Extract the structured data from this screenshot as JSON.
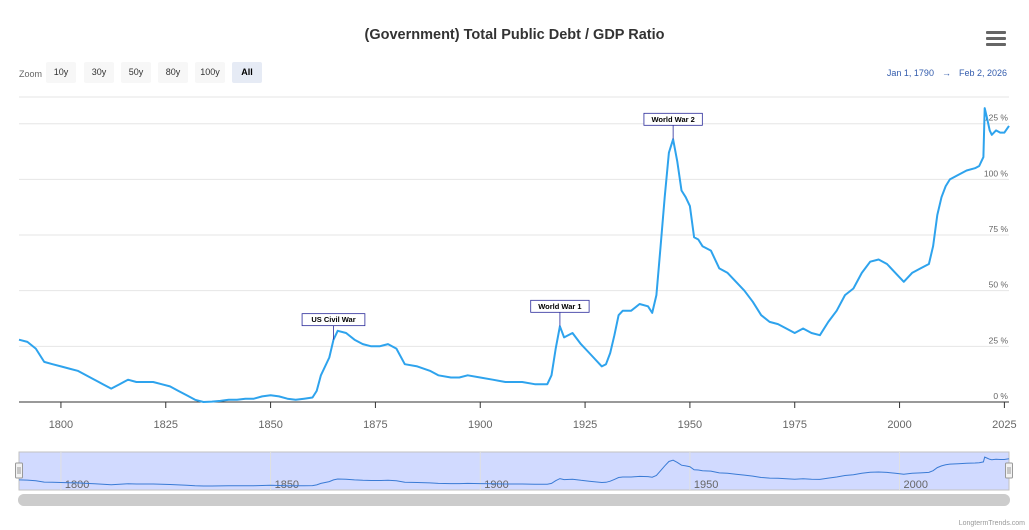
{
  "header": {
    "title": "(Government) Total Public Debt / GDP Ratio",
    "menu_icon": "hamburger-menu-icon"
  },
  "zoom": {
    "label": "Zoom",
    "buttons": [
      "10y",
      "30y",
      "50y",
      "80y",
      "100y",
      "All"
    ],
    "active": "All"
  },
  "range": {
    "from": "Jan 1, 1790",
    "arrow": "→",
    "to": "Feb 2, 2026"
  },
  "credits": "LongtermTrends.com",
  "colors": {
    "line": "#2ea3ed",
    "navigator_mask": "#ccd6ff",
    "flag_border": "#2a2a9a"
  },
  "chart_data": {
    "type": "line",
    "title": "(Government) Total Public Debt / GDP Ratio",
    "xlabel": "",
    "ylabel": "",
    "xlim": [
      1790,
      2026.1
    ],
    "ylim": [
      0,
      137
    ],
    "x_ticks": [
      "1800",
      "1825",
      "1850",
      "1875",
      "1900",
      "1925",
      "1950",
      "1975",
      "2000",
      "2025"
    ],
    "y_ticks": [
      "0 %",
      "25 %",
      "50 %",
      "75 %",
      "100 %",
      "125 %"
    ],
    "navigator_ticks": [
      "1800",
      "1850",
      "1900",
      "1950",
      "2000"
    ],
    "series": [
      {
        "name": "Total Public Debt / GDP",
        "points": [
          [
            1790,
            28
          ],
          [
            1792,
            27
          ],
          [
            1794,
            24
          ],
          [
            1796,
            18
          ],
          [
            1798,
            17
          ],
          [
            1800,
            16
          ],
          [
            1802,
            15
          ],
          [
            1804,
            14
          ],
          [
            1806,
            12
          ],
          [
            1808,
            10
          ],
          [
            1810,
            8
          ],
          [
            1812,
            6
          ],
          [
            1814,
            8
          ],
          [
            1816,
            10
          ],
          [
            1818,
            9
          ],
          [
            1820,
            9
          ],
          [
            1822,
            9
          ],
          [
            1824,
            8
          ],
          [
            1826,
            7
          ],
          [
            1828,
            5
          ],
          [
            1830,
            3
          ],
          [
            1832,
            1
          ],
          [
            1834,
            0
          ],
          [
            1836,
            0.2
          ],
          [
            1838,
            0.5
          ],
          [
            1840,
            1
          ],
          [
            1842,
            1
          ],
          [
            1844,
            1.5
          ],
          [
            1846,
            1.5
          ],
          [
            1848,
            2.5
          ],
          [
            1850,
            3
          ],
          [
            1852,
            2.5
          ],
          [
            1854,
            1.5
          ],
          [
            1856,
            1
          ],
          [
            1858,
            1.5
          ],
          [
            1860,
            2
          ],
          [
            1861,
            5
          ],
          [
            1862,
            12
          ],
          [
            1864,
            20
          ],
          [
            1865,
            28
          ],
          [
            1866,
            32
          ],
          [
            1868,
            31
          ],
          [
            1870,
            28
          ],
          [
            1872,
            26
          ],
          [
            1874,
            25
          ],
          [
            1876,
            25
          ],
          [
            1878,
            26
          ],
          [
            1880,
            24
          ],
          [
            1882,
            17
          ],
          [
            1885,
            16
          ],
          [
            1888,
            14
          ],
          [
            1890,
            12
          ],
          [
            1893,
            11
          ],
          [
            1895,
            11
          ],
          [
            1897,
            12
          ],
          [
            1900,
            11
          ],
          [
            1903,
            10
          ],
          [
            1906,
            9
          ],
          [
            1910,
            9
          ],
          [
            1913,
            8
          ],
          [
            1916,
            8
          ],
          [
            1917,
            12
          ],
          [
            1918,
            24
          ],
          [
            1919,
            34
          ],
          [
            1920,
            29
          ],
          [
            1922,
            31
          ],
          [
            1924,
            26
          ],
          [
            1926,
            22
          ],
          [
            1929,
            16
          ],
          [
            1930,
            17
          ],
          [
            1931,
            22
          ],
          [
            1932,
            30
          ],
          [
            1933,
            39
          ],
          [
            1934,
            41
          ],
          [
            1936,
            41
          ],
          [
            1938,
            44
          ],
          [
            1940,
            43
          ],
          [
            1941,
            40
          ],
          [
            1942,
            48
          ],
          [
            1943,
            70
          ],
          [
            1944,
            92
          ],
          [
            1945,
            112
          ],
          [
            1946,
            118
          ],
          [
            1947,
            108
          ],
          [
            1948,
            95
          ],
          [
            1949,
            92
          ],
          [
            1950,
            88
          ],
          [
            1951,
            74
          ],
          [
            1952,
            73
          ],
          [
            1953,
            70
          ],
          [
            1955,
            68
          ],
          [
            1957,
            60
          ],
          [
            1959,
            58
          ],
          [
            1961,
            54
          ],
          [
            1963,
            50
          ],
          [
            1965,
            45
          ],
          [
            1967,
            39
          ],
          [
            1969,
            36
          ],
          [
            1971,
            35
          ],
          [
            1973,
            33
          ],
          [
            1975,
            31
          ],
          [
            1977,
            33
          ],
          [
            1979,
            31
          ],
          [
            1981,
            30
          ],
          [
            1983,
            36
          ],
          [
            1985,
            41
          ],
          [
            1987,
            48
          ],
          [
            1989,
            51
          ],
          [
            1991,
            58
          ],
          [
            1993,
            63
          ],
          [
            1995,
            64
          ],
          [
            1997,
            62
          ],
          [
            1999,
            58
          ],
          [
            2001,
            54
          ],
          [
            2003,
            58
          ],
          [
            2005,
            60
          ],
          [
            2007,
            62
          ],
          [
            2008,
            70
          ],
          [
            2009,
            84
          ],
          [
            2010,
            92
          ],
          [
            2011,
            97
          ],
          [
            2012,
            100
          ],
          [
            2014,
            102
          ],
          [
            2016,
            104
          ],
          [
            2018,
            105
          ],
          [
            2019,
            106
          ],
          [
            2020,
            110
          ],
          [
            2020.3,
            132
          ],
          [
            2020.8,
            128
          ],
          [
            2021.5,
            122
          ],
          [
            2022,
            120
          ],
          [
            2023,
            122
          ],
          [
            2024,
            121
          ],
          [
            2025,
            121
          ],
          [
            2026.1,
            124
          ]
        ]
      }
    ],
    "annotations": [
      {
        "label": "US Civil War",
        "x": 1865,
        "y": 28
      },
      {
        "label": "World War 1",
        "x": 1919,
        "y": 34
      },
      {
        "label": "World War 2",
        "x": 1946,
        "y": 118
      }
    ]
  }
}
